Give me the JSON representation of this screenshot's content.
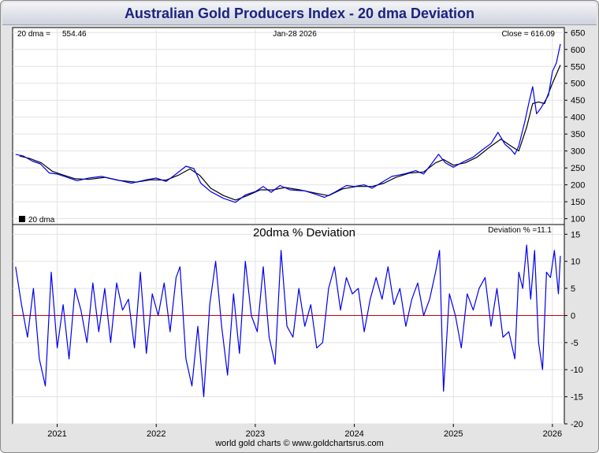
{
  "chart_data": [
    {
      "type": "line",
      "title": "Australian Gold Producers Index - 20 dma Deviation",
      "header": {
        "dma_label": "20 dma =",
        "dma_value": "554.46",
        "date": "Jan-28  2026",
        "close_label": "Close = 616.09"
      },
      "legend": "20 dma",
      "x_ticks": [
        "2021",
        "2022",
        "2023",
        "2024",
        "2025",
        "2026"
      ],
      "y_ticks": [
        100,
        150,
        200,
        250,
        300,
        350,
        400,
        450,
        500,
        550,
        600,
        650
      ],
      "ylim": [
        85,
        660
      ],
      "series": [
        {
          "name": "Close",
          "color": "#0000ee",
          "points": [
            [
              "2020.58",
              290
            ],
            [
              "2020.66",
              285
            ],
            [
              "2020.75",
              270
            ],
            [
              "2020.83",
              262
            ],
            [
              "2020.92",
              235
            ],
            [
              "2021.00",
              232
            ],
            [
              "2021.10",
              222
            ],
            [
              "2021.20",
              212
            ],
            [
              "2021.32",
              220
            ],
            [
              "2021.45",
              225
            ],
            [
              "2021.60",
              215
            ],
            [
              "2021.75",
              205
            ],
            [
              "2021.90",
              215
            ],
            [
              "2022.00",
              220
            ],
            [
              "2022.10",
              210
            ],
            [
              "2022.20",
              232
            ],
            [
              "2022.30",
              255
            ],
            [
              "2022.38",
              248
            ],
            [
              "2022.45",
              205
            ],
            [
              "2022.55",
              180
            ],
            [
              "2022.68",
              160
            ],
            [
              "2022.80",
              148
            ],
            [
              "2022.90",
              170
            ],
            [
              "2023.00",
              180
            ],
            [
              "2023.08",
              195
            ],
            [
              "2023.16",
              178
            ],
            [
              "2023.25",
              198
            ],
            [
              "2023.35",
              185
            ],
            [
              "2023.50",
              182
            ],
            [
              "2023.60",
              173
            ],
            [
              "2023.70",
              163
            ],
            [
              "2023.80",
              178
            ],
            [
              "2023.92",
              198
            ],
            [
              "2024.00",
              195
            ],
            [
              "2024.10",
              200
            ],
            [
              "2024.18",
              190
            ],
            [
              "2024.28",
              208
            ],
            [
              "2024.38",
              225
            ],
            [
              "2024.50",
              232
            ],
            [
              "2024.62",
              242
            ],
            [
              "2024.70",
              232
            ],
            [
              "2024.80",
              270
            ],
            [
              "2024.85",
              290
            ],
            [
              "2024.92",
              265
            ],
            [
              "2025.00",
              252
            ],
            [
              "2025.10",
              268
            ],
            [
              "2025.20",
              282
            ],
            [
              "2025.30",
              305
            ],
            [
              "2025.38",
              322
            ],
            [
              "2025.45",
              355
            ],
            [
              "2025.52",
              320
            ],
            [
              "2025.58",
              305
            ],
            [
              "2025.62",
              290
            ],
            [
              "2025.66",
              315
            ],
            [
              "2025.72",
              385
            ],
            [
              "2025.76",
              440
            ],
            [
              "2025.80",
              490
            ],
            [
              "2025.84",
              410
            ],
            [
              "2025.88",
              425
            ],
            [
              "2025.92",
              445
            ],
            [
              "2025.96",
              465
            ],
            [
              "2026.00",
              535
            ],
            [
              "2026.04",
              560
            ],
            [
              "2026.08",
              616
            ]
          ]
        },
        {
          "name": "20 dma",
          "color": "#000000",
          "points": [
            [
              "2020.62",
              285
            ],
            [
              "2020.72",
              278
            ],
            [
              "2020.84",
              265
            ],
            [
              "2020.95",
              240
            ],
            [
              "2021.05",
              230
            ],
            [
              "2021.18",
              218
            ],
            [
              "2021.32",
              216
            ],
            [
              "2021.48",
              222
            ],
            [
              "2021.62",
              213
            ],
            [
              "2021.80",
              208
            ],
            [
              "2021.95",
              215
            ],
            [
              "2022.10",
              214
            ],
            [
              "2022.22",
              228
            ],
            [
              "2022.34",
              247
            ],
            [
              "2022.44",
              228
            ],
            [
              "2022.55",
              190
            ],
            [
              "2022.68",
              168
            ],
            [
              "2022.80",
              155
            ],
            [
              "2022.92",
              168
            ],
            [
              "2023.05",
              185
            ],
            [
              "2023.18",
              185
            ],
            [
              "2023.30",
              192
            ],
            [
              "2023.45",
              185
            ],
            [
              "2023.60",
              176
            ],
            [
              "2023.74",
              168
            ],
            [
              "2023.88",
              188
            ],
            [
              "2024.02",
              195
            ],
            [
              "2024.18",
              195
            ],
            [
              "2024.30",
              205
            ],
            [
              "2024.42",
              222
            ],
            [
              "2024.56",
              235
            ],
            [
              "2024.70",
              238
            ],
            [
              "2024.82",
              265
            ],
            [
              "2024.90",
              275
            ],
            [
              "2025.00",
              258
            ],
            [
              "2025.12",
              265
            ],
            [
              "2025.24",
              282
            ],
            [
              "2025.36",
              310
            ],
            [
              "2025.48",
              335
            ],
            [
              "2025.58",
              315
            ],
            [
              "2025.66",
              300
            ],
            [
              "2025.74",
              370
            ],
            [
              "2025.80",
              440
            ],
            [
              "2025.86",
              445
            ],
            [
              "2025.92",
              440
            ],
            [
              "2026.00",
              500
            ],
            [
              "2026.08",
              554
            ]
          ]
        }
      ]
    },
    {
      "type": "line",
      "title": "20dma  %  Deviation",
      "header": {
        "deviation_label": "Deviation % =11.1"
      },
      "x_ticks": [
        "2021",
        "2022",
        "2023",
        "2024",
        "2025",
        "2026"
      ],
      "y_ticks": [
        -20,
        -15,
        -10,
        -5,
        0,
        5,
        10,
        15
      ],
      "ylim": [
        -20,
        16.5
      ],
      "zero_line_color": "#cc0000",
      "series": [
        {
          "name": "Deviation %",
          "color": "#0000ee",
          "points": [
            [
              "2020.58",
              9
            ],
            [
              "2020.64",
              2
            ],
            [
              "2020.70",
              -4
            ],
            [
              "2020.76",
              5
            ],
            [
              "2020.82",
              -8
            ],
            [
              "2020.88",
              -13
            ],
            [
              "2020.94",
              8
            ],
            [
              "2021.00",
              -6
            ],
            [
              "2021.06",
              2
            ],
            [
              "2021.12",
              -8
            ],
            [
              "2021.18",
              5
            ],
            [
              "2021.24",
              1
            ],
            [
              "2021.30",
              -5
            ],
            [
              "2021.36",
              6
            ],
            [
              "2021.42",
              -3
            ],
            [
              "2021.48",
              5
            ],
            [
              "2021.54",
              -5
            ],
            [
              "2021.60",
              6
            ],
            [
              "2021.66",
              1
            ],
            [
              "2021.72",
              3
            ],
            [
              "2021.78",
              -6
            ],
            [
              "2021.84",
              8
            ],
            [
              "2021.90",
              -7
            ],
            [
              "2021.96",
              4
            ],
            [
              "2022.02",
              0
            ],
            [
              "2022.08",
              6
            ],
            [
              "2022.14",
              -3
            ],
            [
              "2022.20",
              7
            ],
            [
              "2022.24",
              9
            ],
            [
              "2022.30",
              -8
            ],
            [
              "2022.36",
              -13
            ],
            [
              "2022.42",
              -2
            ],
            [
              "2022.48",
              -15
            ],
            [
              "2022.54",
              2
            ],
            [
              "2022.60",
              10
            ],
            [
              "2022.66",
              -2
            ],
            [
              "2022.72",
              -11
            ],
            [
              "2022.78",
              4
            ],
            [
              "2022.84",
              -7
            ],
            [
              "2022.90",
              10
            ],
            [
              "2022.96",
              0
            ],
            [
              "2023.02",
              -3
            ],
            [
              "2023.08",
              9
            ],
            [
              "2023.14",
              -4
            ],
            [
              "2023.20",
              -9
            ],
            [
              "2023.26",
              12
            ],
            [
              "2023.32",
              -2
            ],
            [
              "2023.38",
              -4
            ],
            [
              "2023.44",
              5
            ],
            [
              "2023.50",
              -2
            ],
            [
              "2023.56",
              2
            ],
            [
              "2023.62",
              -6
            ],
            [
              "2023.68",
              -5
            ],
            [
              "2023.74",
              5
            ],
            [
              "2023.80",
              9
            ],
            [
              "2023.86",
              1
            ],
            [
              "2023.92",
              7
            ],
            [
              "2023.98",
              4
            ],
            [
              "2024.04",
              5
            ],
            [
              "2024.10",
              -3
            ],
            [
              "2024.16",
              3
            ],
            [
              "2024.22",
              7
            ],
            [
              "2024.28",
              3
            ],
            [
              "2024.34",
              9
            ],
            [
              "2024.40",
              2
            ],
            [
              "2024.46",
              5
            ],
            [
              "2024.52",
              -2
            ],
            [
              "2024.58",
              3
            ],
            [
              "2024.64",
              6
            ],
            [
              "2024.70",
              0
            ],
            [
              "2024.76",
              3
            ],
            [
              "2024.82",
              8
            ],
            [
              "2024.86",
              12
            ],
            [
              "2024.90",
              -14
            ],
            [
              "2024.96",
              4
            ],
            [
              "2025.02",
              0
            ],
            [
              "2025.08",
              -6
            ],
            [
              "2025.14",
              4
            ],
            [
              "2025.20",
              1
            ],
            [
              "2025.26",
              5
            ],
            [
              "2025.32",
              7
            ],
            [
              "2025.38",
              -2
            ],
            [
              "2025.44",
              5
            ],
            [
              "2025.50",
              -4
            ],
            [
              "2025.56",
              -3
            ],
            [
              "2025.62",
              -8
            ],
            [
              "2025.66",
              8
            ],
            [
              "2025.70",
              5
            ],
            [
              "2025.74",
              13
            ],
            [
              "2025.78",
              3
            ],
            [
              "2025.82",
              12
            ],
            [
              "2025.86",
              -5
            ],
            [
              "2025.90",
              -10
            ],
            [
              "2025.94",
              8
            ],
            [
              "2025.98",
              7
            ],
            [
              "2026.02",
              12
            ],
            [
              "2026.06",
              4
            ],
            [
              "2026.08",
              11
            ]
          ]
        }
      ]
    }
  ],
  "footer": "world gold charts © www.goldchartsrus.com"
}
